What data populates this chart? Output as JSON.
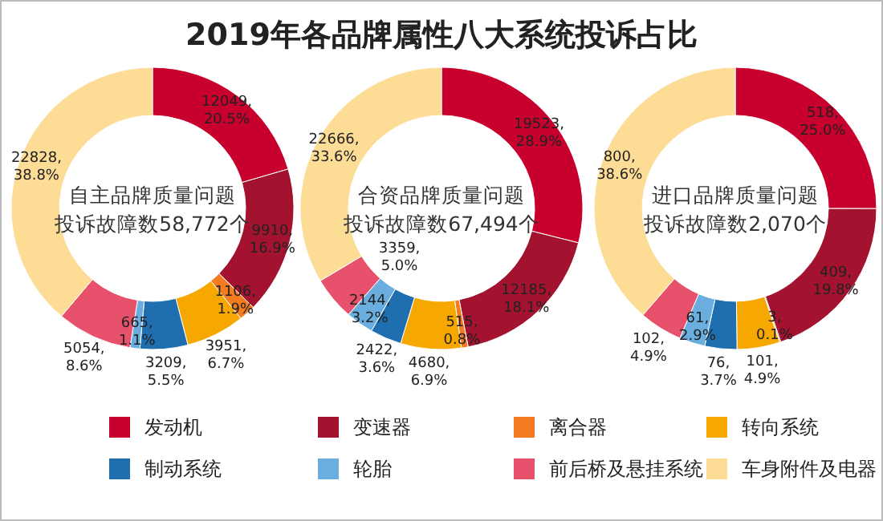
{
  "chart_data": [
    {
      "type": "donut",
      "title": "2019年各品牌属性八大系统投诉占比",
      "categories": [
        "发动机",
        "变速器",
        "离合器",
        "转向系统",
        "制动系统",
        "轮胎",
        "前后桥及悬挂系统",
        "车身附件及电器"
      ],
      "colors": [
        "#c8002d",
        "#a3132f",
        "#f47c20",
        "#f7a800",
        "#1f6fb0",
        "#6aaee0",
        "#e8516b",
        "#fddc96"
      ],
      "values": [
        12049,
        9910,
        1106,
        3951,
        3209,
        665,
        5054,
        22828
      ],
      "value_labels": [
        "12049, 20.5%",
        "9910, 16.9%",
        "1106, 1.9%",
        "3951, 6.7%",
        "3209, 5.5%",
        "665, 1.1%",
        "5054, 8.6%",
        "22828, 38.8%"
      ],
      "annotations": [
        "自主品牌质量问题",
        "投诉故障数58,772个"
      ],
      "legend": "bottom"
    },
    {
      "type": "donut",
      "colors": [
        "#c8002d",
        "#a3132f",
        "#f47c20",
        "#f7a800",
        "#1f6fb0",
        "#6aaee0",
        "#e8516b",
        "#fddc96"
      ],
      "values": [
        19523,
        12185,
        515,
        4680,
        2422,
        2144,
        3359,
        22666
      ],
      "value_labels": [
        "19523, 28.9%",
        "12185, 18.1%",
        "515, 0.8%",
        "4680, 6.9%",
        "2422, 3.6%",
        "2144, 3.2%",
        "3359, 5.0%",
        "22666, 33.6%"
      ],
      "annotations": [
        "合资品牌质量问题",
        "投诉故障数67,494个"
      ]
    },
    {
      "type": "donut",
      "colors": [
        "#c8002d",
        "#a3132f",
        "#f47c20",
        "#f7a800",
        "#1f6fb0",
        "#6aaee0",
        "#e8516b",
        "#fddc96"
      ],
      "values": [
        518,
        409,
        3,
        101,
        76,
        61,
        102,
        800
      ],
      "value_labels": [
        "518, 25.0%",
        "409, 19.8%",
        "3, 0.1%",
        "101, 4.9%",
        "76, 3.7%",
        "61, 2.9%",
        "102, 4.9%",
        "800, 38.6%"
      ],
      "annotations": [
        "进口品牌质量问题",
        "投诉故障数2,070个"
      ]
    }
  ]
}
